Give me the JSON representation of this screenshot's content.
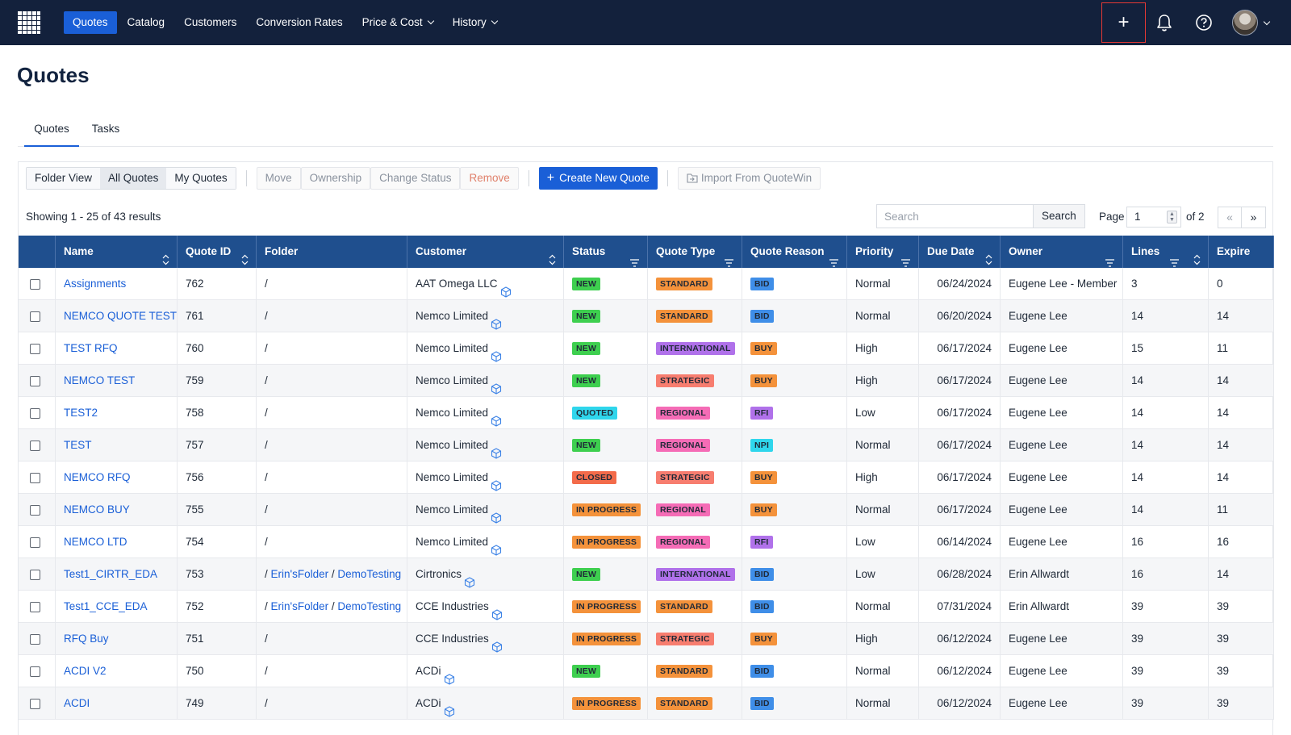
{
  "nav": {
    "items": [
      {
        "label": "Quotes",
        "active": true,
        "dropdown": false
      },
      {
        "label": "Catalog",
        "active": false,
        "dropdown": false
      },
      {
        "label": "Customers",
        "active": false,
        "dropdown": false
      },
      {
        "label": "Conversion Rates",
        "active": false,
        "dropdown": false
      },
      {
        "label": "Price & Cost",
        "active": false,
        "dropdown": true
      },
      {
        "label": "History",
        "active": false,
        "dropdown": true
      }
    ],
    "plus_label": "+",
    "icons": [
      "grid-logo-icon",
      "plus-icon",
      "bell-icon",
      "help-icon",
      "avatar"
    ]
  },
  "page": {
    "title": "Quotes"
  },
  "tabs": [
    {
      "label": "Quotes",
      "active": true
    },
    {
      "label": "Tasks",
      "active": false
    }
  ],
  "toolbar": {
    "views": [
      {
        "label": "Folder View",
        "active": false
      },
      {
        "label": "All Quotes",
        "active": true
      },
      {
        "label": "My Quotes",
        "active": false
      }
    ],
    "move": "Move",
    "ownership": "Ownership",
    "change_status": "Change Status",
    "remove": "Remove",
    "create": "Create New Quote",
    "import": "Import From QuoteWin"
  },
  "results": {
    "showing": "Showing 1 - 25 of 43 results",
    "search_placeholder": "Search",
    "search_button": "Search",
    "page_label": "Page",
    "page_value": "1",
    "page_of": "of 2",
    "prev": "«",
    "next": "»"
  },
  "columns": [
    "",
    "Name",
    "Quote ID",
    "Folder",
    "Customer",
    "Status",
    "Quote Type",
    "Quote Reason",
    "Priority",
    "Due Date",
    "Owner",
    "Lines",
    "Expire"
  ],
  "colors": {
    "topbar": "#13213c",
    "accent": "#1a5fd7",
    "table_header": "#1f4f8e",
    "status": {
      "NEW": "#3ecf4f",
      "QUOTED": "#2fd6ec",
      "CLOSED": "#f36b4a",
      "IN PROGRESS": "#f4923b"
    },
    "type": {
      "STANDARD": "#f4923b",
      "INTERNATIONAL": "#b071ea",
      "STRATEGIC": "#f77d6f",
      "REGIONAL": "#f56cb6"
    },
    "reason": {
      "BID": "#3f8ee8",
      "BUY": "#f4923b",
      "RFI": "#b071ea",
      "NPI": "#2fd6ec"
    }
  },
  "rows": [
    {
      "name": "Assignments",
      "id": "762",
      "folder": [
        {
          "t": "/",
          "link": false
        }
      ],
      "customer": "AAT Omega LLC",
      "status": "NEW",
      "type": "STANDARD",
      "reason": "BID",
      "priority": "Normal",
      "due": "06/24/2024",
      "owner": "Eugene Lee - Member",
      "lines": "3",
      "expire": "0"
    },
    {
      "name": "NEMCO QUOTE TEST",
      "id": "761",
      "folder": [
        {
          "t": "/",
          "link": false
        }
      ],
      "customer": "Nemco Limited",
      "status": "NEW",
      "type": "STANDARD",
      "reason": "BID",
      "priority": "Normal",
      "due": "06/20/2024",
      "owner": "Eugene Lee",
      "lines": "14",
      "expire": "14"
    },
    {
      "name": "TEST RFQ",
      "id": "760",
      "folder": [
        {
          "t": "/",
          "link": false
        }
      ],
      "customer": "Nemco Limited",
      "status": "NEW",
      "type": "INTERNATIONAL",
      "reason": "BUY",
      "priority": "High",
      "due": "06/17/2024",
      "owner": "Eugene Lee",
      "lines": "15",
      "expire": "11"
    },
    {
      "name": "NEMCO TEST",
      "id": "759",
      "folder": [
        {
          "t": "/",
          "link": false
        }
      ],
      "customer": "Nemco Limited",
      "status": "NEW",
      "type": "STRATEGIC",
      "reason": "BUY",
      "priority": "High",
      "due": "06/17/2024",
      "owner": "Eugene Lee",
      "lines": "14",
      "expire": "14"
    },
    {
      "name": "TEST2",
      "id": "758",
      "folder": [
        {
          "t": "/",
          "link": false
        }
      ],
      "customer": "Nemco Limited",
      "status": "QUOTED",
      "type": "REGIONAL",
      "reason": "RFI",
      "priority": "Low",
      "due": "06/17/2024",
      "owner": "Eugene Lee",
      "lines": "14",
      "expire": "14"
    },
    {
      "name": "TEST",
      "id": "757",
      "folder": [
        {
          "t": "/",
          "link": false
        }
      ],
      "customer": "Nemco Limited",
      "status": "NEW",
      "type": "REGIONAL",
      "reason": "NPI",
      "priority": "Normal",
      "due": "06/17/2024",
      "owner": "Eugene Lee",
      "lines": "14",
      "expire": "14"
    },
    {
      "name": "NEMCO RFQ",
      "id": "756",
      "folder": [
        {
          "t": "/",
          "link": false
        }
      ],
      "customer": "Nemco Limited",
      "status": "CLOSED",
      "type": "STRATEGIC",
      "reason": "BUY",
      "priority": "High",
      "due": "06/17/2024",
      "owner": "Eugene Lee",
      "lines": "14",
      "expire": "14"
    },
    {
      "name": "NEMCO BUY",
      "id": "755",
      "folder": [
        {
          "t": "/",
          "link": false
        }
      ],
      "customer": "Nemco Limited",
      "status": "IN PROGRESS",
      "type": "REGIONAL",
      "reason": "BUY",
      "priority": "Normal",
      "due": "06/17/2024",
      "owner": "Eugene Lee",
      "lines": "14",
      "expire": "11"
    },
    {
      "name": "NEMCO LTD",
      "id": "754",
      "folder": [
        {
          "t": "/",
          "link": false
        }
      ],
      "customer": "Nemco Limited",
      "status": "IN PROGRESS",
      "type": "REGIONAL",
      "reason": "RFI",
      "priority": "Low",
      "due": "06/14/2024",
      "owner": "Eugene Lee",
      "lines": "16",
      "expire": "16"
    },
    {
      "name": "Test1_CIRTR_EDA",
      "id": "753",
      "folder": [
        {
          "t": "/ ",
          "link": false
        },
        {
          "t": "Erin'sFolder",
          "link": true
        },
        {
          "t": " / ",
          "link": false
        },
        {
          "t": "DemoTesting",
          "link": true
        }
      ],
      "customer": "Cirtronics",
      "status": "NEW",
      "type": "INTERNATIONAL",
      "reason": "BID",
      "priority": "Low",
      "due": "06/28/2024",
      "owner": "Erin Allwardt",
      "lines": "16",
      "expire": "14"
    },
    {
      "name": "Test1_CCE_EDA",
      "id": "752",
      "folder": [
        {
          "t": "/ ",
          "link": false
        },
        {
          "t": "Erin'sFolder",
          "link": true
        },
        {
          "t": " / ",
          "link": false
        },
        {
          "t": "DemoTesting",
          "link": true
        }
      ],
      "customer": "CCE Industries",
      "status": "IN PROGRESS",
      "type": "STANDARD",
      "reason": "BID",
      "priority": "Normal",
      "due": "07/31/2024",
      "owner": "Erin Allwardt",
      "lines": "39",
      "expire": "39"
    },
    {
      "name": "RFQ Buy",
      "id": "751",
      "folder": [
        {
          "t": "/",
          "link": false
        }
      ],
      "customer": "CCE Industries",
      "status": "IN PROGRESS",
      "type": "STRATEGIC",
      "reason": "BUY",
      "priority": "High",
      "due": "06/12/2024",
      "owner": "Eugene Lee",
      "lines": "39",
      "expire": "39"
    },
    {
      "name": "ACDI V2",
      "id": "750",
      "folder": [
        {
          "t": "/",
          "link": false
        }
      ],
      "customer": "ACDi",
      "status": "NEW",
      "type": "STANDARD",
      "reason": "BID",
      "priority": "Normal",
      "due": "06/12/2024",
      "owner": "Eugene Lee",
      "lines": "39",
      "expire": "39"
    },
    {
      "name": "ACDI",
      "id": "749",
      "folder": [
        {
          "t": "/",
          "link": false
        }
      ],
      "customer": "ACDi",
      "status": "IN PROGRESS",
      "type": "STANDARD",
      "reason": "BID",
      "priority": "Normal",
      "due": "06/12/2024",
      "owner": "Eugene Lee",
      "lines": "39",
      "expire": "39"
    }
  ]
}
